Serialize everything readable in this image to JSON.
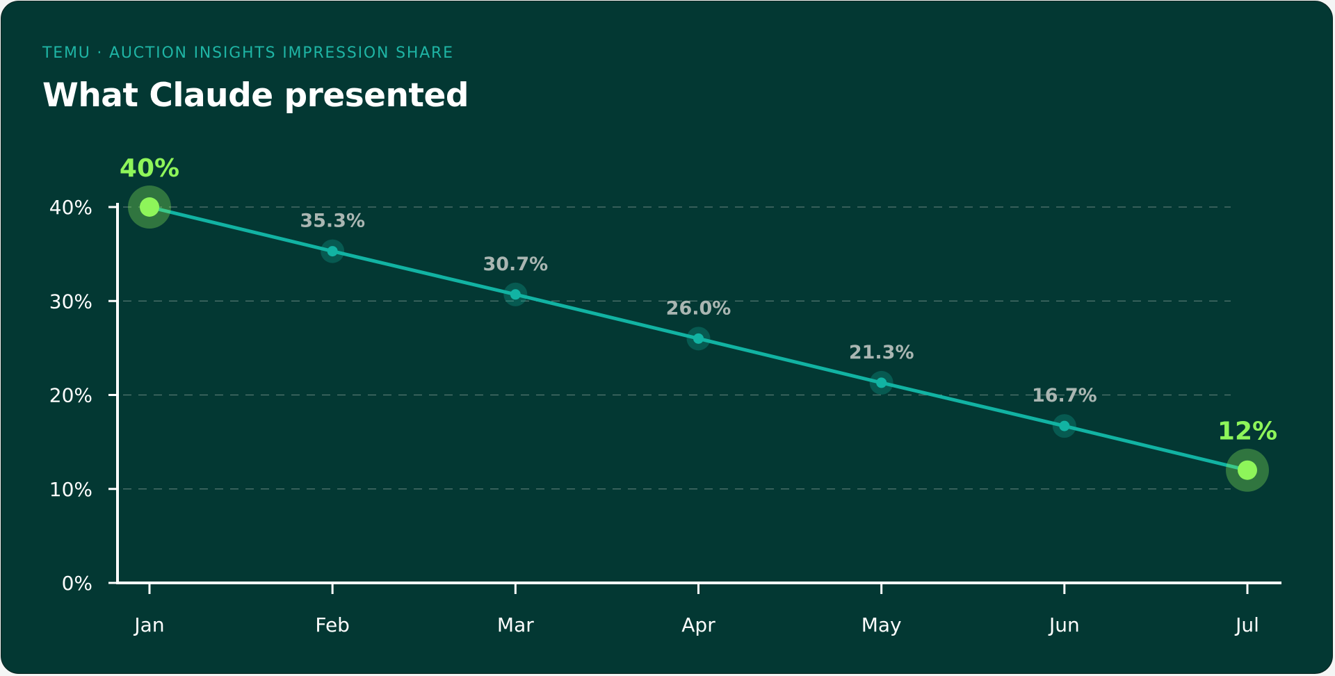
{
  "header": {
    "eyebrow": "TEMU · AUCTION INSIGHTS IMPRESSION SHARE",
    "title": "What Claude presented"
  },
  "colors": {
    "background": "#033833",
    "line": "#12b3a3",
    "highlight": "#8ef55a",
    "grid": "#6f8c86",
    "axis": "#ffffff"
  },
  "chart_data": {
    "type": "line",
    "categories": [
      "Jan",
      "Feb",
      "Mar",
      "Apr",
      "May",
      "Jun",
      "Jul"
    ],
    "series": [
      {
        "values": [
          40,
          35.3,
          30.7,
          26.0,
          21.3,
          16.7,
          12
        ]
      }
    ],
    "data_labels": [
      "40%",
      "35.3%",
      "30.7%",
      "26.0%",
      "21.3%",
      "16.7%",
      "12%"
    ],
    "highlight_indices": [
      0,
      6
    ],
    "y_ticks": [
      0,
      10,
      20,
      30,
      40
    ],
    "y_tick_labels": [
      "0%",
      "10%",
      "20%",
      "30%",
      "40%"
    ],
    "ylim": [
      0,
      40
    ],
    "grid": true,
    "grid_style": "dashed-horizontal",
    "title": "What Claude presented",
    "xlabel": "",
    "ylabel": ""
  }
}
